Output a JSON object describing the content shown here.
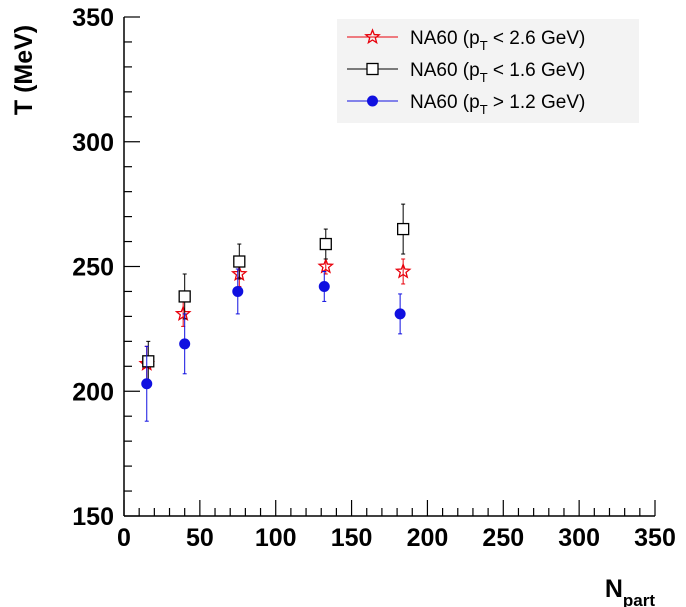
{
  "chart_data": {
    "type": "scatter",
    "xlabel": "N",
    "xlabel_sub": "part",
    "ylabel": "T (MeV)",
    "xlim": [
      0,
      350
    ],
    "ylim": [
      150,
      350
    ],
    "x_ticks": [
      0,
      50,
      100,
      150,
      200,
      250,
      300,
      350
    ],
    "y_ticks": [
      150,
      200,
      250,
      300,
      350
    ],
    "grid": false,
    "legend_position": "top-right",
    "series": [
      {
        "name_pre": "NA60 (p",
        "name_sub": "T",
        "name_post": " < 2.6 GeV)",
        "marker": "open-star",
        "color": "#e8000b",
        "points": [
          {
            "x": 15,
            "y": 211,
            "err": 7
          },
          {
            "x": 39,
            "y": 231,
            "err": 5
          },
          {
            "x": 76,
            "y": 247,
            "err": 5
          },
          {
            "x": 133,
            "y": 250,
            "err": 3
          },
          {
            "x": 184,
            "y": 248,
            "err": 5
          }
        ]
      },
      {
        "name_pre": "NA60 (p",
        "name_sub": "T",
        "name_post": " < 1.6 GeV)",
        "marker": "open-square",
        "color": "#000000",
        "points": [
          {
            "x": 16,
            "y": 212,
            "err": 8
          },
          {
            "x": 40,
            "y": 238,
            "err": 9
          },
          {
            "x": 76,
            "y": 252,
            "err": 7
          },
          {
            "x": 133,
            "y": 259,
            "err": 6
          },
          {
            "x": 184,
            "y": 265,
            "err": 10
          }
        ]
      },
      {
        "name_pre": "NA60 (p",
        "name_sub": "T",
        "name_post": " > 1.2 GeV)",
        "marker": "filled-circle",
        "color": "#1010e0",
        "points": [
          {
            "x": 15,
            "y": 203,
            "err": 15
          },
          {
            "x": 40,
            "y": 219,
            "err": 12
          },
          {
            "x": 75,
            "y": 240,
            "err": 9
          },
          {
            "x": 132,
            "y": 242,
            "err": 6
          },
          {
            "x": 182,
            "y": 231,
            "err": 8
          }
        ]
      }
    ]
  }
}
